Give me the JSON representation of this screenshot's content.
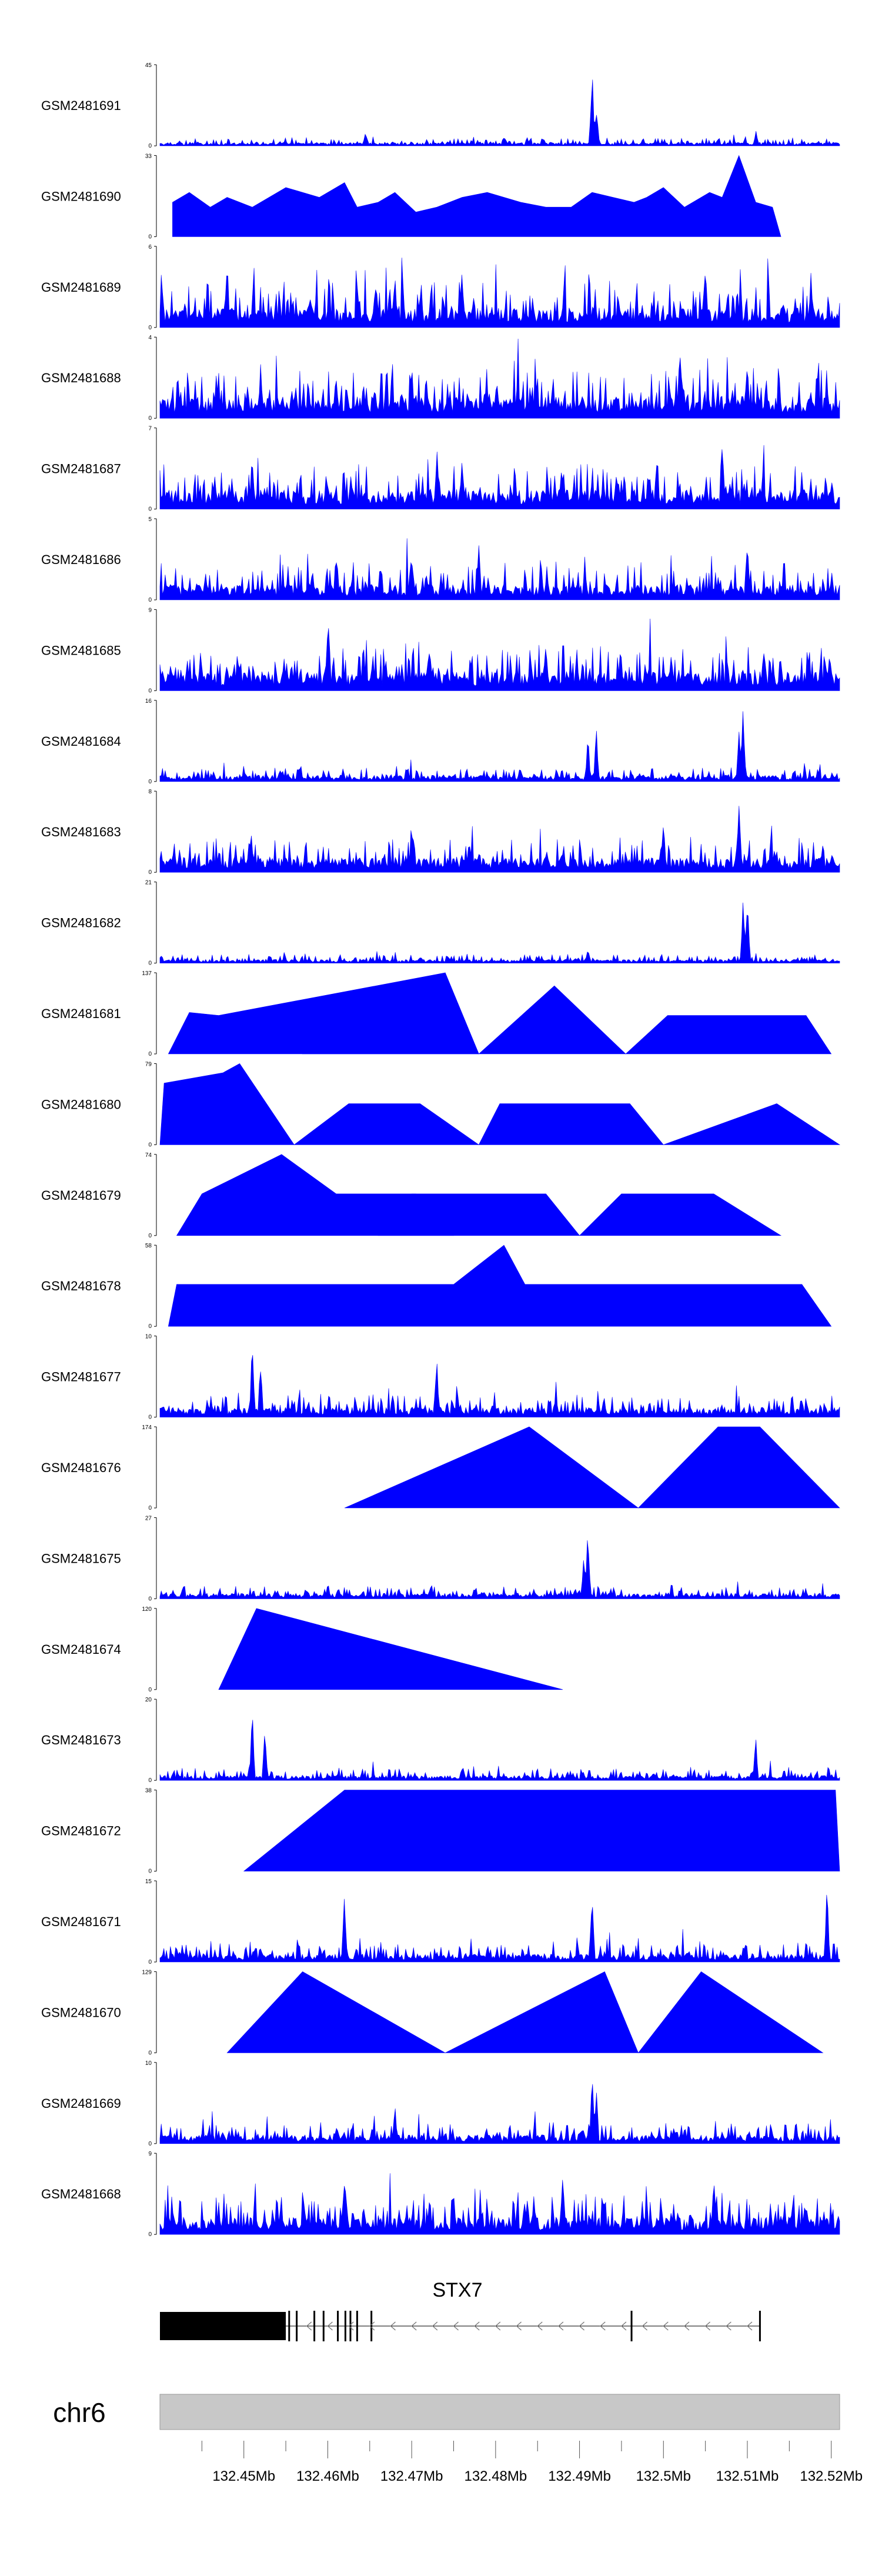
{
  "chart_data": {
    "type": "area",
    "title": "",
    "chromosome": "chr6",
    "gene": "STX7",
    "strand": "-",
    "xlim_bp": [
      132440000,
      132521000
    ],
    "x_ticks_bp": [
      132445000,
      132450000,
      132455000,
      132460000,
      132465000,
      132470000,
      132475000,
      132480000,
      132485000,
      132490000,
      132495000,
      132500000,
      132505000,
      132510000,
      132515000,
      132520000
    ],
    "x_tick_labels": [
      "132.45Mb",
      "132.46Mb",
      "132.47Mb",
      "132.48Mb",
      "132.49Mb",
      "132.5Mb",
      "132.51Mb",
      "132.52Mb"
    ],
    "x_tick_labels_bp": [
      132450000,
      132460000,
      132470000,
      132480000,
      132490000,
      132500000,
      132510000,
      132520000
    ],
    "fill_color": "#0000ff",
    "gene_color": "#000000",
    "ideogram_color": "#c8c8c8",
    "gene_model": {
      "span_bp": [
        132440000,
        132511500
      ],
      "thick_exon_bp": [
        132440000,
        132455000
      ],
      "exon_marks_bp": [
        132455400,
        132456300,
        132458400,
        132459500,
        132461200,
        132462100,
        132462700,
        132463500,
        132465200,
        132496200,
        132511500
      ],
      "strand_arrows": "<"
    },
    "series": [
      {
        "name": "GSM2481691",
        "ymin": 0,
        "ymax": 45,
        "style": "noisy",
        "baseline": 1.5,
        "noise": 3.0,
        "peaks": [
          [
            132491500,
            45
          ],
          [
            132492000,
            25
          ],
          [
            132464500,
            10
          ],
          [
            132511000,
            9
          ]
        ]
      },
      {
        "name": "GSM2481690",
        "ymin": 0,
        "ymax": 33,
        "style": "triangles",
        "spikes_bp": [
          132441500,
          132443500,
          132446000,
          132448000,
          132451000,
          132455000,
          132459000,
          132462000,
          132463500,
          132466000,
          132468000,
          132470500,
          132473000,
          132476000,
          132479000,
          132483000,
          132486000,
          132489000,
          132491500,
          132494000,
          132496500,
          132498000,
          132500000,
          132502500,
          132505500,
          132507000,
          132509000,
          132511000,
          132513000
        ],
        "spike_heights": [
          14,
          18,
          12,
          16,
          12,
          20,
          16,
          22,
          12,
          14,
          18,
          10,
          12,
          16,
          18,
          14,
          12,
          12,
          18,
          16,
          14,
          16,
          20,
          12,
          18,
          16,
          33,
          14,
          12
        ],
        "spans_bp": [
          [
            132441500,
            132514000
          ]
        ]
      },
      {
        "name": "GSM2481689",
        "ymin": 0,
        "ymax": 6,
        "style": "noisy",
        "baseline": 1.2,
        "noise": 2.3,
        "peaks": [
          [
            132448000,
            5.5
          ],
          [
            132505000,
            6
          ],
          [
            132476000,
            5
          ]
        ]
      },
      {
        "name": "GSM2481688",
        "ymin": 0,
        "ymax": 4,
        "style": "noisy",
        "baseline": 0.9,
        "noise": 1.6,
        "peaks": [
          [
            132502000,
            3.8
          ],
          [
            132510000,
            3.6
          ],
          [
            132452000,
            3.2
          ]
        ]
      },
      {
        "name": "GSM2481687",
        "ymin": 0,
        "ymax": 7,
        "style": "noisy",
        "baseline": 1.4,
        "noise": 2.4,
        "peaks": [
          [
            132451000,
            6
          ],
          [
            132473000,
            6
          ],
          [
            132507000,
            6.8
          ]
        ]
      },
      {
        "name": "GSM2481686",
        "ymin": 0,
        "ymax": 5,
        "style": "noisy",
        "baseline": 0.8,
        "noise": 1.6,
        "peaks": [
          [
            132510000,
            4.8
          ],
          [
            132461000,
            3.5
          ],
          [
            132478000,
            3.6
          ]
        ]
      },
      {
        "name": "GSM2481685",
        "ymin": 0,
        "ymax": 9,
        "style": "noisy",
        "baseline": 1.8,
        "noise": 3.1,
        "peaks": [
          [
            132460000,
            8.5
          ],
          [
            132486000,
            6.8
          ],
          [
            132512000,
            6.5
          ]
        ]
      },
      {
        "name": "GSM2481684",
        "ymin": 0,
        "ymax": 16,
        "style": "noisy",
        "baseline": 1.0,
        "noise": 1.8,
        "peaks": [
          [
            132492000,
            12
          ],
          [
            132491000,
            10
          ],
          [
            132509500,
            16
          ],
          [
            132509000,
            12
          ]
        ]
      },
      {
        "name": "GSM2481683",
        "ymin": 0,
        "ymax": 8,
        "style": "noisy",
        "baseline": 1.2,
        "noise": 2.3,
        "peaks": [
          [
            132509000,
            8
          ],
          [
            132500000,
            5.5
          ],
          [
            132470000,
            5
          ]
        ]
      },
      {
        "name": "GSM2481682",
        "ymin": 0,
        "ymax": 21,
        "style": "noisy",
        "baseline": 0.8,
        "noise": 1.6,
        "peaks": [
          [
            132510000,
            21
          ],
          [
            132509500,
            17
          ],
          [
            132491000,
            5
          ]
        ]
      },
      {
        "name": "GSM2481681",
        "ymin": 0,
        "ymax": 137,
        "style": "triangles",
        "spikes_bp": [
          132443500,
          132447000,
          132474000,
          132487000,
          132500500,
          132517000
        ],
        "spike_heights": [
          70,
          65,
          137,
          115,
          65,
          65
        ],
        "spans_bp": [
          [
            132441000,
            132478000
          ],
          [
            132457000,
            132478000
          ],
          [
            132478000,
            132495500
          ],
          [
            132495500,
            132520000
          ]
        ]
      },
      {
        "name": "GSM2481680",
        "ymin": 0,
        "ymax": 79,
        "style": "triangles",
        "spikes_bp": [
          132440500,
          132447500,
          132449500,
          132462500,
          132468000,
          132471000,
          132480500,
          132496000,
          132513500
        ],
        "spike_heights": [
          60,
          70,
          79,
          40,
          40,
          40,
          40,
          40,
          40
        ],
        "spans_bp": [
          [
            132440000,
            132456000
          ],
          [
            132456000,
            132478000
          ],
          [
            132478000,
            132500000
          ],
          [
            132500000,
            132521000
          ]
        ]
      },
      {
        "name": "GSM2481679",
        "ymin": 0,
        "ymax": 74,
        "style": "triangles",
        "spikes_bp": [
          132445000,
          132454500,
          132461000,
          132470000,
          132470500,
          132486000,
          132495000,
          132506000
        ],
        "spike_heights": [
          38,
          74,
          38,
          38,
          38,
          38,
          38,
          38
        ],
        "spans_bp": [
          [
            132442000,
            132475000
          ],
          [
            132466000,
            132490000
          ],
          [
            132490000,
            132514000
          ]
        ]
      },
      {
        "name": "GSM2481678",
        "ymin": 0,
        "ymax": 58,
        "style": "triangles",
        "spikes_bp": [
          132442000,
          132444000,
          132446500,
          132449000,
          132451500,
          132454000,
          132462000,
          132467000,
          132475000,
          132481000,
          132483500,
          132486000,
          132490000,
          132494000,
          132497000,
          132501000,
          132508000,
          132513000,
          132516500
        ],
        "spike_heights": [
          30,
          30,
          30,
          30,
          30,
          30,
          30,
          30,
          30,
          58,
          30,
          30,
          30,
          30,
          30,
          30,
          30,
          30,
          30
        ],
        "spans_bp": [
          [
            132441000,
            132520000
          ]
        ]
      },
      {
        "name": "GSM2481677",
        "ymin": 0,
        "ymax": 10,
        "style": "noisy",
        "baseline": 1.0,
        "noise": 1.8,
        "peaks": [
          [
            132451000,
            10
          ],
          [
            132452000,
            8
          ],
          [
            132473000,
            7.5
          ]
        ]
      },
      {
        "name": "GSM2481676",
        "ymin": 0,
        "ymax": 174,
        "style": "triangles",
        "spikes_bp": [
          132484000,
          132506500,
          132509000,
          132511500
        ],
        "spike_heights": [
          174,
          174,
          174,
          174
        ],
        "spans_bp": [
          [
            132462000,
            132497000
          ],
          [
            132497000,
            132521000
          ]
        ]
      },
      {
        "name": "GSM2481675",
        "ymin": 0,
        "ymax": 27,
        "style": "noisy",
        "baseline": 1.5,
        "noise": 2.5,
        "peaks": [
          [
            132491000,
            27
          ],
          [
            132490500,
            15
          ],
          [
            132460000,
            6
          ]
        ]
      },
      {
        "name": "GSM2481674",
        "ymin": 0,
        "ymax": 120,
        "style": "triangles",
        "spikes_bp": [
          132451500
        ],
        "spike_heights": [
          120
        ],
        "spans_bp": [
          [
            132447000,
            132488000
          ]
        ]
      },
      {
        "name": "GSM2481673",
        "ymin": 0,
        "ymax": 20,
        "style": "noisy",
        "baseline": 1.0,
        "noise": 2.0,
        "peaks": [
          [
            132451000,
            20
          ],
          [
            132452500,
            15
          ],
          [
            132511000,
            12
          ]
        ]
      },
      {
        "name": "GSM2481672",
        "ymin": 0,
        "ymax": 38,
        "style": "triangles",
        "spikes_bp": [
          132462000,
          132490000,
          132493000,
          132499000,
          132501000,
          132514000,
          132520500
        ],
        "spike_heights": [
          38,
          38,
          38,
          38,
          38,
          38,
          38
        ],
        "spans_bp": [
          [
            132450000,
            132521000
          ]
        ]
      },
      {
        "name": "GSM2481671",
        "ymin": 0,
        "ymax": 15,
        "style": "noisy",
        "baseline": 1.2,
        "noise": 2.3,
        "peaks": [
          [
            132462000,
            14
          ],
          [
            132491500,
            15
          ],
          [
            132519500,
            15
          ]
        ]
      },
      {
        "name": "GSM2481670",
        "ymin": 0,
        "ymax": 129,
        "style": "triangles",
        "spikes_bp": [
          132457000,
          132493000,
          132504500
        ],
        "spike_heights": [
          129,
          129,
          129
        ],
        "spans_bp": [
          [
            132448000,
            132474000
          ],
          [
            132474000,
            132497000
          ],
          [
            132497000,
            132519000
          ]
        ]
      },
      {
        "name": "GSM2481669",
        "ymin": 0,
        "ymax": 10,
        "style": "noisy",
        "baseline": 0.9,
        "noise": 1.7,
        "peaks": [
          [
            132491500,
            10
          ],
          [
            132492000,
            8
          ],
          [
            132468000,
            5
          ]
        ]
      },
      {
        "name": "GSM2481668",
        "ymin": 0,
        "ymax": 9,
        "style": "noisy",
        "baseline": 1.6,
        "noise": 2.9,
        "peaks": [
          [
            132462000,
            8.5
          ],
          [
            132488000,
            8
          ],
          [
            132506000,
            8
          ]
        ]
      }
    ]
  }
}
